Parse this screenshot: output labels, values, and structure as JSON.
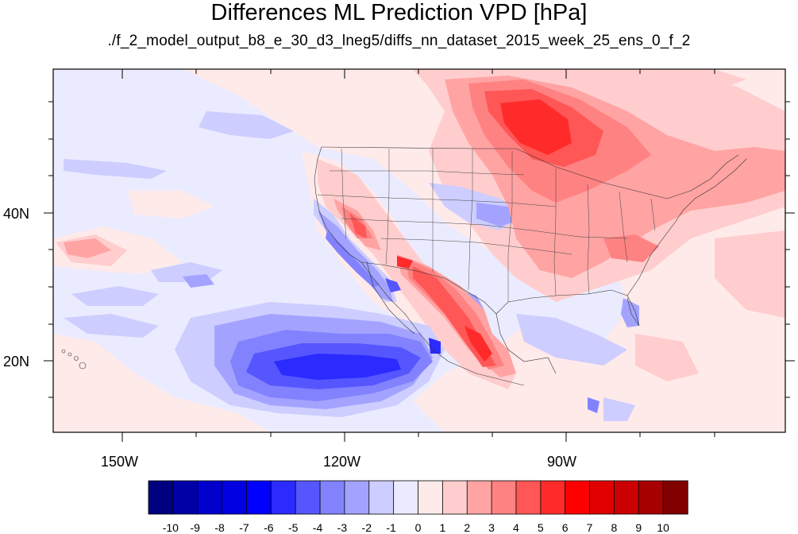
{
  "title": "Differences ML Prediction VPD [hPa]",
  "subtitle": "./f_2_model_output_b8_e_30_d3_lneg5/diffs_nn_dataset_2015_week_25_ens_0_f_2",
  "axes": {
    "lon_labels": [
      "150W",
      "120W",
      "90W"
    ],
    "lat_labels": [
      "40N",
      "20N"
    ]
  },
  "colorbar": {
    "labels": [
      "-10",
      "-9",
      "-8",
      "-7",
      "-6",
      "-5",
      "-4",
      "-3",
      "-2",
      "-1",
      "0",
      "1",
      "2",
      "3",
      "4",
      "5",
      "6",
      "7",
      "8",
      "9",
      "10"
    ],
    "colors": [
      "#000080",
      "#0000a6",
      "#0000cc",
      "#0000e0",
      "#0000ff",
      "#2b2bff",
      "#5656ff",
      "#8282ff",
      "#a3a3ff",
      "#cdcdff",
      "#ebebff",
      "#ffeaea",
      "#ffcdcd",
      "#ffa3a3",
      "#ff8282",
      "#ff5656",
      "#ff2b2b",
      "#ff0000",
      "#e00000",
      "#cc0000",
      "#a60000",
      "#800000"
    ]
  },
  "field_colors": {
    "background": "#ebebff",
    "light_red": "#ffeaea",
    "pink": "#ffcdcd",
    "red2": "#ffa3a3",
    "red3": "#ff8282",
    "red4": "#ff5656",
    "red5": "#ff2b2b",
    "light_blue": "#cdcdff",
    "blue2": "#a3a3ff",
    "blue3": "#8282ff",
    "blue4": "#5656ff",
    "blue5": "#2b2bff"
  }
}
